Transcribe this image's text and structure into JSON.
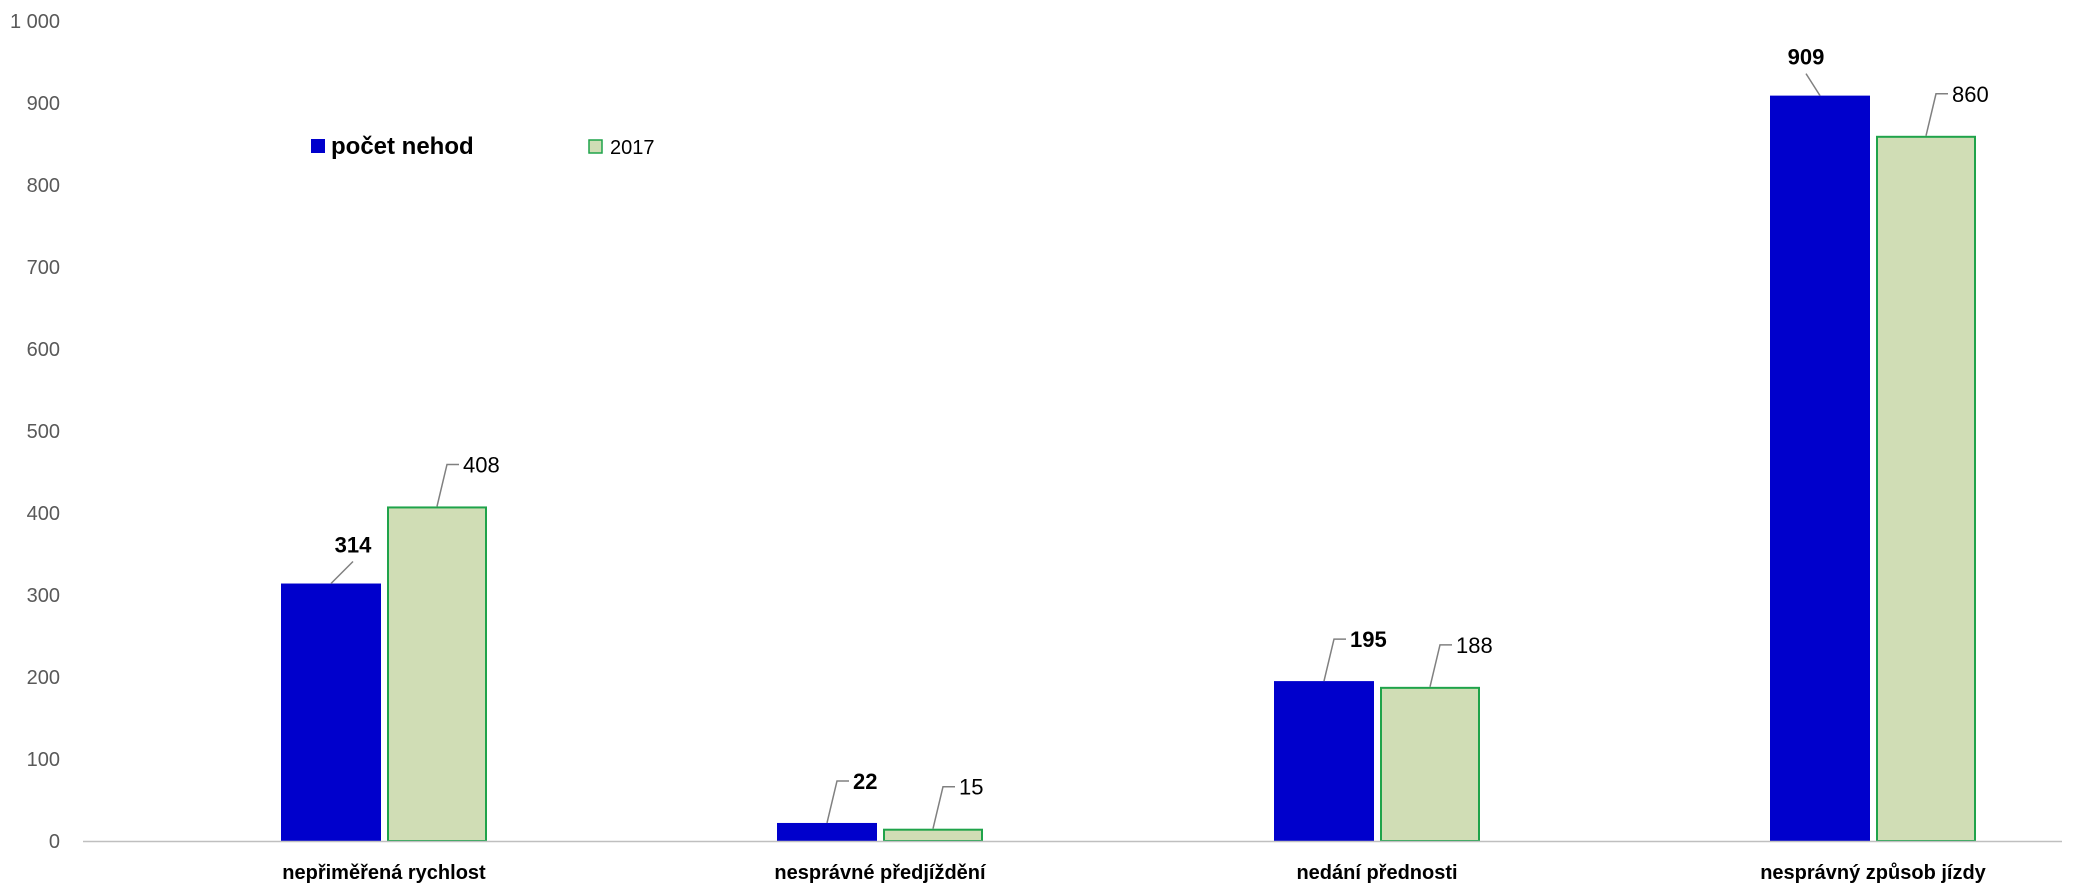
{
  "chart_data": {
    "type": "bar",
    "categories": [
      "nepřiměřená rychlost",
      "nesprávné předjíždění",
      "nedání přednosti",
      "nesprávný způsob jízdy"
    ],
    "series": [
      {
        "name": "počet nehod",
        "values": [
          314,
          22,
          195,
          909
        ],
        "color": "#0000CC"
      },
      {
        "name": "2017",
        "values": [
          408,
          15,
          188,
          860
        ],
        "color": "#D0DDB5",
        "stroke": "#1FA34A"
      }
    ],
    "y_ticks": [
      "0",
      "100",
      "200",
      "300",
      "400",
      "500",
      "600",
      "700",
      "800",
      "900",
      "1 000"
    ],
    "ylim": [
      0,
      1000
    ],
    "grid": false,
    "legend_position": "top-left",
    "axis_color": "#BFBFBF",
    "leader_color": "#808080"
  }
}
